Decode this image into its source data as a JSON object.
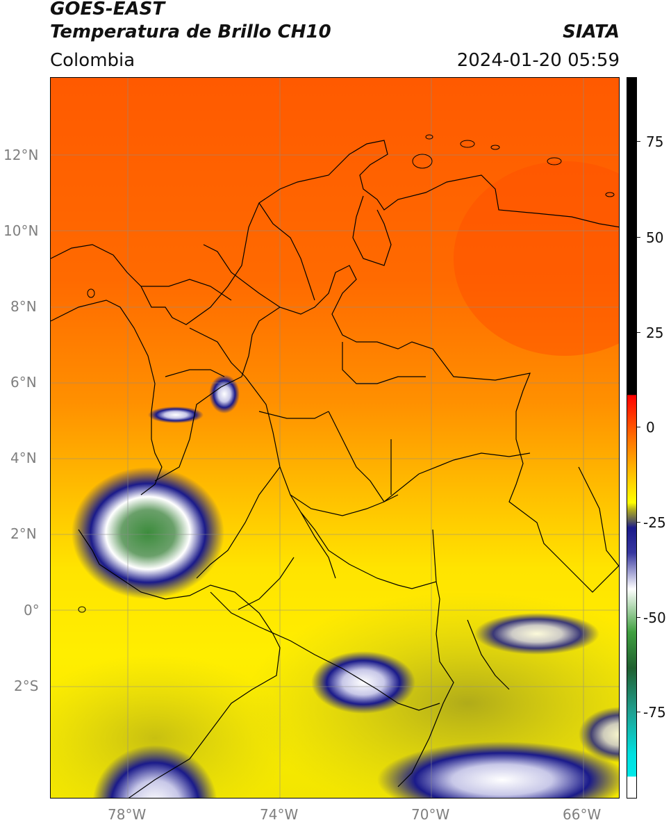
{
  "header": {
    "satellite": "GOES-EAST",
    "product": "Temperatura de Brillo CH10",
    "region": "Colombia",
    "org": "SIATA",
    "datetime": "2024-01-20 05:59"
  },
  "axes": {
    "lat_labels": [
      "12°N",
      "10°N",
      "8°N",
      "6°N",
      "4°N",
      "2°N",
      "0°",
      "2°S"
    ],
    "lon_labels": [
      "78°W",
      "74°W",
      "70°W",
      "66°W"
    ]
  },
  "colorbar": {
    "tick_labels": [
      "75",
      "50",
      "25",
      "0",
      "-25",
      "-50",
      "-75"
    ]
  },
  "colors": {
    "warm_orange": "#ff5a00",
    "orange": "#ff8c00",
    "yellow": "#ffee00",
    "olive": "#b8b41e",
    "navy": "#1a1a8a",
    "white": "#ffffff",
    "green": "#3c8c3c",
    "teal": "#20c0a0",
    "cyan": "#00e0e0"
  }
}
